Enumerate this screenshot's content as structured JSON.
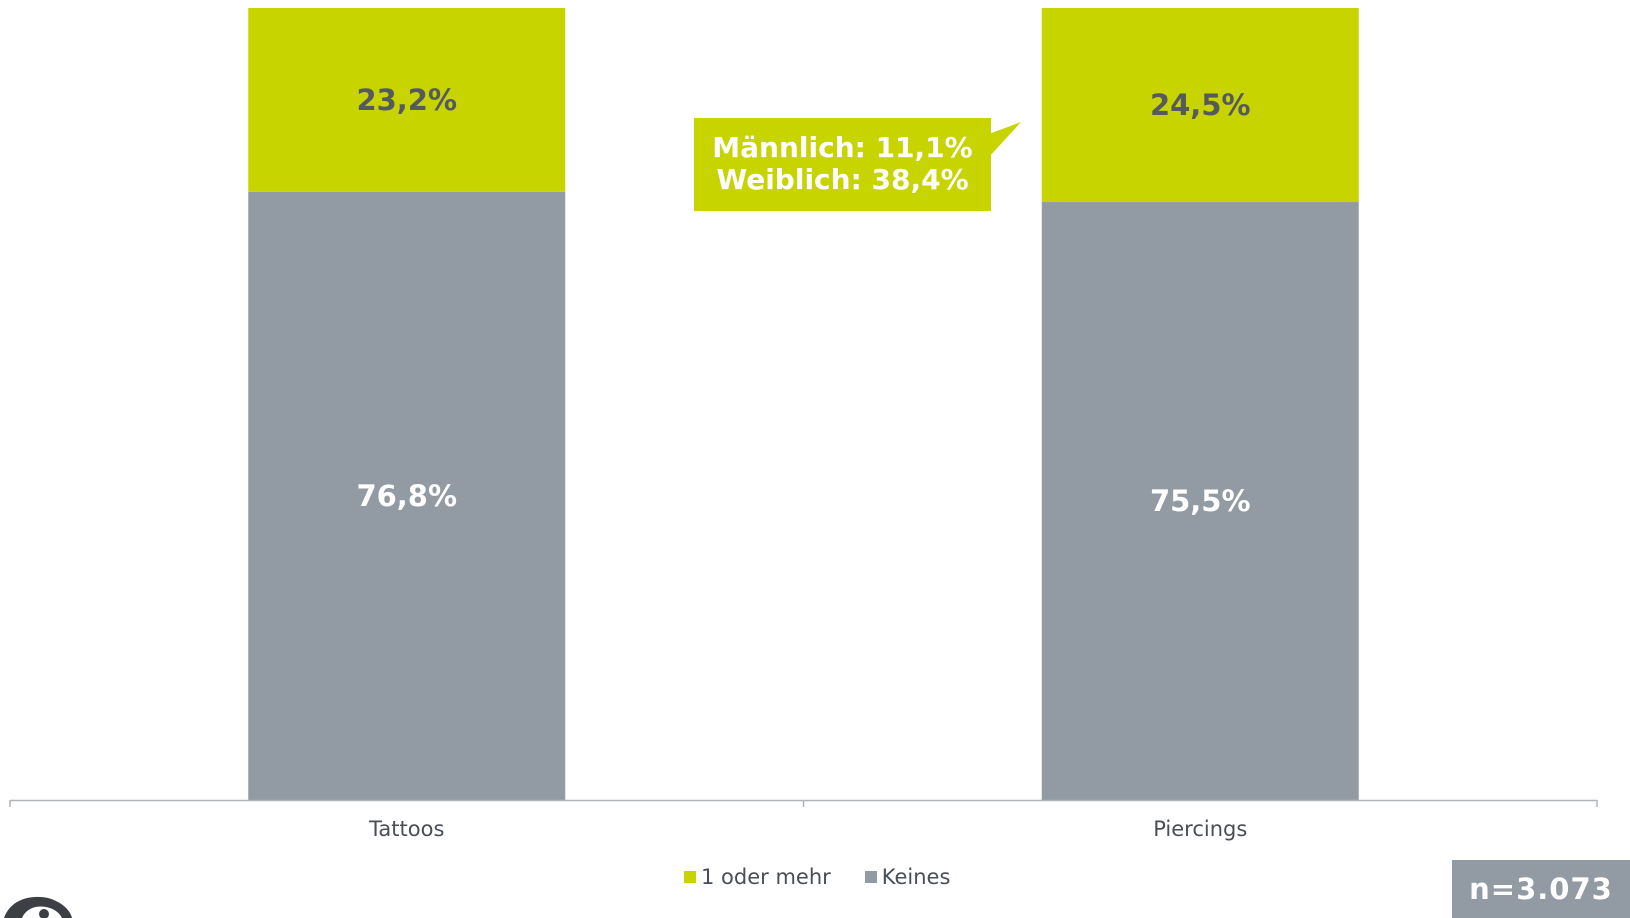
{
  "chart_data": {
    "type": "bar",
    "stacked": true,
    "categories": [
      "Tattoos",
      "Piercings"
    ],
    "series": [
      {
        "name": "Keines",
        "values": [
          76.8,
          75.5
        ],
        "labels": [
          "76,8%",
          "75,5%"
        ],
        "color": "#929aa3",
        "label_color": "#ffffff"
      },
      {
        "name": "1 oder mehr",
        "values": [
          23.2,
          24.5
        ],
        "labels": [
          "23,2%",
          "24,5%"
        ],
        "color": "#c8d400",
        "label_color": "#555a60"
      }
    ],
    "ylim": [
      0,
      100
    ],
    "grid": false,
    "legend_position": "bottom"
  },
  "legend": [
    {
      "label": "1 oder mehr",
      "color": "#c8d400"
    },
    {
      "label": "Keines",
      "color": "#929aa3"
    }
  ],
  "callout": {
    "line1": "Männlich: 11,1%",
    "line2": "Weiblich: 38,4%",
    "color": "#c8d400"
  },
  "sample": "n=3.073",
  "colors": {
    "axis": "#b0b5ba",
    "text": "#4a4f57"
  }
}
